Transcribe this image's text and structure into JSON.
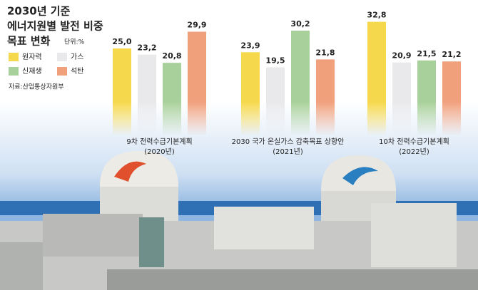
{
  "chart_data": {
    "type": "bar",
    "title_lines": [
      "2030년 기준",
      "에너지원별 발전 비중",
      "목표 변화"
    ],
    "unit": "단위:%",
    "source": "자료:산업통상자원부",
    "categories": [
      "9차 전력수급기본계획",
      "2030 국가 온실가스 감축목표 상향안",
      "10차 전력수급기본계획"
    ],
    "category_years": [
      "(2020년)",
      "(2021년)",
      "(2022년)"
    ],
    "series": [
      {
        "name": "원자력",
        "color": "#f6d84c",
        "values": [
          25.0,
          23.9,
          32.8
        ],
        "value_labels": [
          "25,0",
          "23,9",
          "32,8"
        ]
      },
      {
        "name": "가스",
        "color": "#e9e9ec",
        "values": [
          23.2,
          19.5,
          20.9
        ],
        "value_labels": [
          "23,2",
          "19,5",
          "20,9"
        ]
      },
      {
        "name": "신재생",
        "color": "#a8d09a",
        "values": [
          20.8,
          30.2,
          21.5
        ],
        "value_labels": [
          "20,8",
          "30,2",
          "21,5"
        ]
      },
      {
        "name": "석탄",
        "color": "#f1a07c",
        "values": [
          29.9,
          21.8,
          21.2
        ],
        "value_labels": [
          "29,9",
          "21,8",
          "21,2"
        ]
      }
    ]
  }
}
